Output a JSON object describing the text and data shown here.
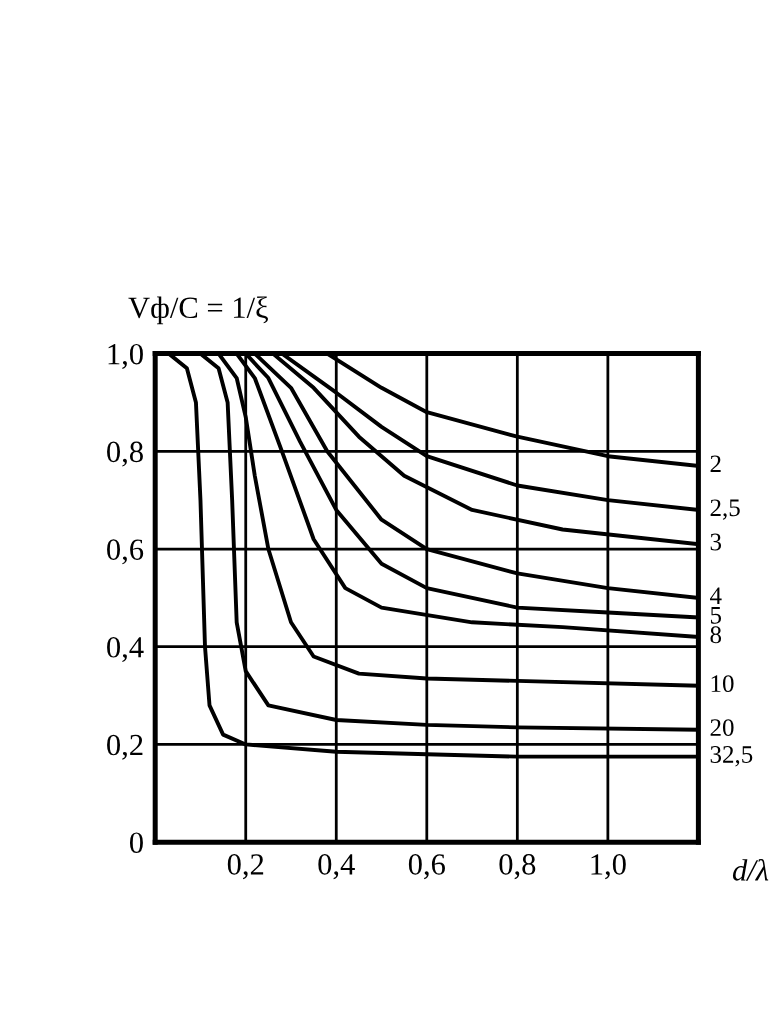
{
  "chart_data": {
    "type": "line",
    "ylabel": "Vф/C = 1/ξ",
    "xlabel": "d/λ",
    "xlim": [
      0,
      1.2
    ],
    "ylim": [
      0,
      1.0
    ],
    "xticks": [
      {
        "value": 0.2,
        "label": "0,2"
      },
      {
        "value": 0.4,
        "label": "0,4"
      },
      {
        "value": 0.6,
        "label": "0,6"
      },
      {
        "value": 0.8,
        "label": "0,8"
      },
      {
        "value": 1.0,
        "label": "1,0"
      }
    ],
    "yticks": [
      0,
      {
        "value": 0.2,
        "label": "0,2"
      },
      {
        "value": 0.4,
        "label": "0,4"
      },
      {
        "value": 0.6,
        "label": "0,6"
      },
      {
        "value": 0.8,
        "label": "0,8"
      },
      {
        "value": 1.0,
        "label": "1,0"
      }
    ],
    "grid": true,
    "legend": false,
    "marker": "none",
    "line_style": "solid",
    "series": [
      {
        "name": "2",
        "color": "#000000",
        "x": [
          0.38,
          0.5,
          0.6,
          0.8,
          1.0,
          1.2
        ],
        "values": [
          1.0,
          0.93,
          0.88,
          0.83,
          0.79,
          0.77
        ]
      },
      {
        "name": "2,5",
        "color": "#000000",
        "x": [
          0.28,
          0.4,
          0.5,
          0.6,
          0.8,
          1.0,
          1.2
        ],
        "values": [
          1.0,
          0.92,
          0.85,
          0.79,
          0.73,
          0.7,
          0.68
        ]
      },
      {
        "name": "3",
        "color": "#000000",
        "x": [
          0.26,
          0.35,
          0.45,
          0.55,
          0.7,
          0.9,
          1.2
        ],
        "values": [
          1.0,
          0.93,
          0.83,
          0.75,
          0.68,
          0.64,
          0.61
        ]
      },
      {
        "name": "4",
        "color": "#000000",
        "x": [
          0.22,
          0.3,
          0.38,
          0.5,
          0.6,
          0.8,
          1.0,
          1.2
        ],
        "values": [
          1.0,
          0.93,
          0.8,
          0.66,
          0.6,
          0.55,
          0.52,
          0.5
        ]
      },
      {
        "name": "5",
        "color": "#000000",
        "x": [
          0.2,
          0.25,
          0.32,
          0.4,
          0.5,
          0.6,
          0.8,
          1.0,
          1.2
        ],
        "values": [
          1.0,
          0.95,
          0.82,
          0.68,
          0.57,
          0.52,
          0.48,
          0.47,
          0.46
        ]
      },
      {
        "name": "8",
        "color": "#000000",
        "x": [
          0.18,
          0.22,
          0.28,
          0.35,
          0.42,
          0.5,
          0.7,
          0.9,
          1.2
        ],
        "values": [
          1.0,
          0.95,
          0.8,
          0.62,
          0.52,
          0.48,
          0.45,
          0.44,
          0.42
        ]
      },
      {
        "name": "10",
        "color": "#000000",
        "x": [
          0.14,
          0.18,
          0.2,
          0.22,
          0.25,
          0.3,
          0.35,
          0.45,
          0.6,
          0.8,
          1.2
        ],
        "values": [
          1.0,
          0.95,
          0.87,
          0.75,
          0.6,
          0.45,
          0.38,
          0.345,
          0.335,
          0.33,
          0.32
        ]
      },
      {
        "name": "20",
        "color": "#000000",
        "x": [
          0.1,
          0.14,
          0.16,
          0.17,
          0.18,
          0.2,
          0.25,
          0.4,
          0.6,
          0.8,
          1.2
        ],
        "values": [
          1.0,
          0.97,
          0.9,
          0.7,
          0.45,
          0.35,
          0.28,
          0.25,
          0.24,
          0.235,
          0.23
        ]
      },
      {
        "name": "32,5",
        "color": "#000000",
        "x": [
          0.03,
          0.07,
          0.09,
          0.1,
          0.11,
          0.12,
          0.15,
          0.2,
          0.4,
          0.6,
          0.8,
          1.2
        ],
        "values": [
          1.0,
          0.97,
          0.9,
          0.7,
          0.4,
          0.28,
          0.22,
          0.2,
          0.185,
          0.18,
          0.175,
          0.175
        ]
      }
    ]
  }
}
